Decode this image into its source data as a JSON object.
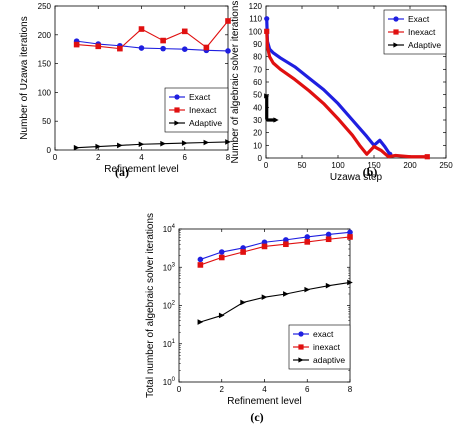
{
  "colors": {
    "exact": "#1f1fe0",
    "inexact": "#e01010",
    "adaptive": "#000000"
  },
  "chart_data": [
    {
      "id": "a",
      "panel_label": "(a)",
      "type": "line",
      "xlabel": "Refinement level",
      "ylabel": "Number of Uzawa iterations",
      "xlim": [
        0,
        8
      ],
      "ylim": [
        0,
        250
      ],
      "xticks": [
        0,
        2,
        4,
        6,
        8
      ],
      "yticks": [
        0,
        50,
        100,
        150,
        200,
        250
      ],
      "legend_position": "center-right",
      "series": [
        {
          "name": "Exact",
          "color": "#1f1fe0",
          "marker": "circle",
          "x": [
            1,
            2,
            3,
            4,
            5,
            6,
            7,
            8
          ],
          "y": [
            189,
            184,
            181,
            177,
            176,
            175,
            173,
            172
          ]
        },
        {
          "name": "Inexact",
          "color": "#e01010",
          "marker": "square",
          "x": [
            1,
            2,
            3,
            4,
            5,
            6,
            7,
            8
          ],
          "y": [
            183,
            180,
            176,
            210,
            190,
            206,
            178,
            224
          ]
        },
        {
          "name": "Adaptive",
          "color": "#000000",
          "marker": "triangle",
          "x": [
            1,
            2,
            3,
            4,
            5,
            6,
            7,
            8
          ],
          "y": [
            4,
            6,
            8,
            10,
            11,
            12,
            13,
            14
          ]
        }
      ]
    },
    {
      "id": "b",
      "panel_label": "(b)",
      "type": "line",
      "xlabel": "Uzawa step",
      "ylabel": "Number of algebraic solver iterations",
      "xlim": [
        0,
        250
      ],
      "ylim": [
        0,
        120
      ],
      "xticks": [
        0,
        50,
        100,
        150,
        200,
        250
      ],
      "yticks": [
        0,
        10,
        20,
        30,
        40,
        50,
        60,
        70,
        80,
        90,
        100,
        110,
        120
      ],
      "legend_position": "top-right",
      "series": [
        {
          "name": "Exact",
          "color": "#1f1fe0",
          "marker": "circle",
          "x": [
            1,
            2,
            5,
            10,
            20,
            40,
            60,
            80,
            100,
            120,
            140,
            150,
            158,
            165,
            172
          ],
          "y": [
            110,
            92,
            86,
            83,
            79,
            72,
            63,
            54,
            43,
            30,
            17,
            10,
            14,
            9,
            3
          ]
        },
        {
          "name": "Inexact",
          "color": "#e01010",
          "marker": "square",
          "x": [
            1,
            2,
            5,
            10,
            20,
            40,
            60,
            80,
            100,
            120,
            130,
            140,
            150,
            160,
            170,
            180,
            200,
            224
          ],
          "y": [
            100,
            88,
            80,
            75,
            70,
            62,
            53,
            43,
            31,
            18,
            10,
            3,
            9,
            6,
            1,
            2,
            1,
            1
          ]
        },
        {
          "name": "Adaptive",
          "color": "#000000",
          "marker": "triangle",
          "x": [
            1,
            1,
            1,
            1,
            2,
            3,
            4,
            6,
            8,
            10,
            12,
            14
          ],
          "y": [
            49,
            40,
            33,
            31,
            30,
            30,
            30,
            30,
            30,
            30,
            30,
            30
          ]
        }
      ]
    },
    {
      "id": "c",
      "panel_label": "(c)",
      "type": "line",
      "xlabel": "Refinement level",
      "ylabel": "Total number of algebraic solver iterations",
      "xlim": [
        0,
        8
      ],
      "ylim": [
        1,
        10000
      ],
      "yscale": "log",
      "xticks": [
        0,
        2,
        4,
        6,
        8
      ],
      "yticks": [
        {
          "value": 1,
          "base": "10",
          "exp": "0"
        },
        {
          "value": 10,
          "base": "10",
          "exp": "1"
        },
        {
          "value": 100,
          "base": "10",
          "exp": "2"
        },
        {
          "value": 1000,
          "base": "10",
          "exp": "3"
        },
        {
          "value": 10000,
          "base": "10",
          "exp": "4"
        }
      ],
      "legend_position": "center-right",
      "series": [
        {
          "name": "exact",
          "color": "#1f1fe0",
          "marker": "circle",
          "x": [
            1,
            2,
            3,
            4,
            5,
            6,
            7,
            8
          ],
          "y": [
            1600,
            2500,
            3200,
            4500,
            5200,
            6200,
            7200,
            8200
          ]
        },
        {
          "name": "inexact",
          "color": "#e01010",
          "marker": "square",
          "x": [
            1,
            2,
            3,
            4,
            5,
            6,
            7,
            8
          ],
          "y": [
            1150,
            1800,
            2500,
            3500,
            4000,
            4600,
            5400,
            6200
          ]
        },
        {
          "name": "adaptive",
          "color": "#000000",
          "marker": "triangle",
          "x": [
            1,
            2,
            3,
            4,
            5,
            6,
            7,
            8
          ],
          "y": [
            37,
            55,
            120,
            165,
            200,
            260,
            330,
            400
          ]
        }
      ]
    }
  ]
}
